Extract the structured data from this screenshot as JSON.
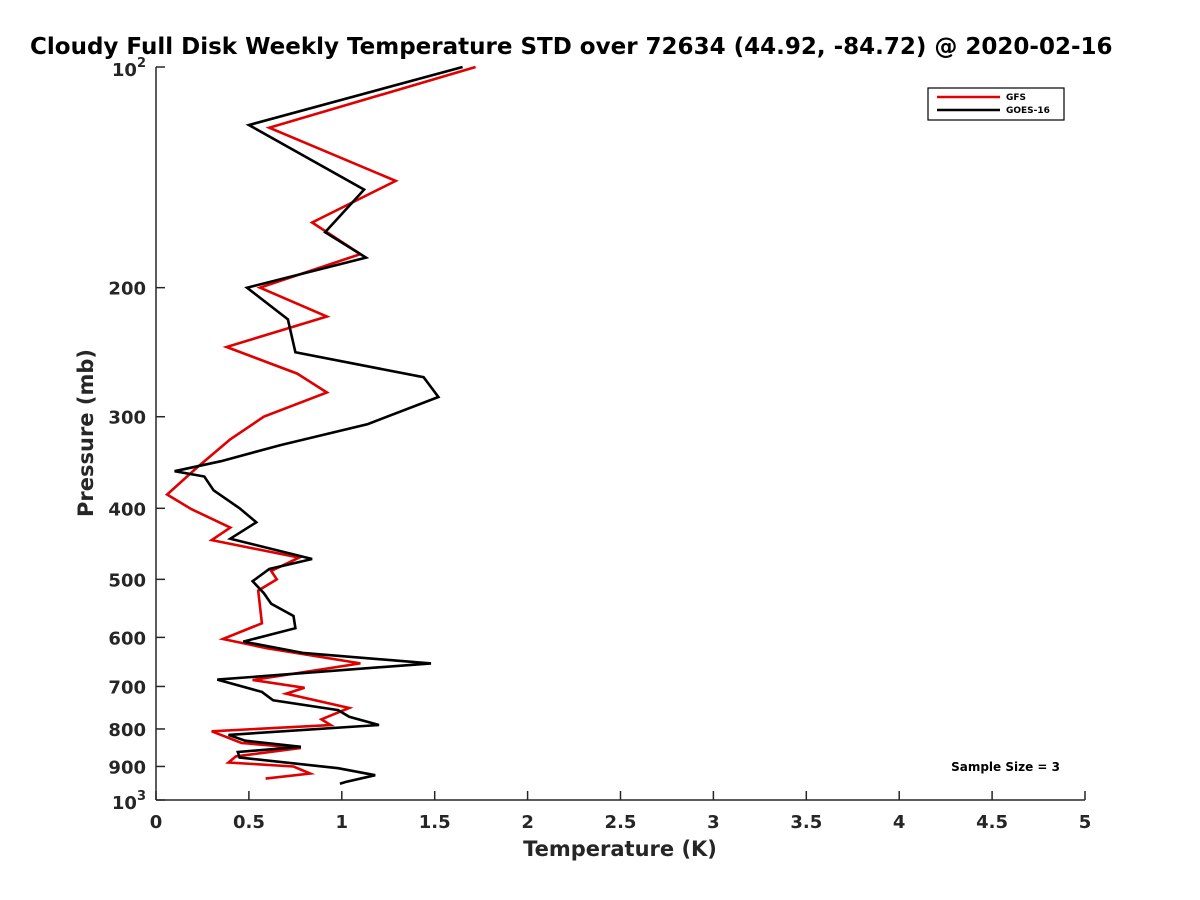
{
  "chart_data": {
    "type": "line",
    "title": "Cloudy Full Disk Weekly Temperature STD over 72634 (44.92, -84.72) @ 2020-02-16",
    "xlabel": "Temperature (K)",
    "ylabel": "Pressure (mb)",
    "xlim": [
      0,
      5
    ],
    "ylim": [
      100,
      1000
    ],
    "yscale": "log",
    "y_reversed": true,
    "grid": false,
    "legend_position": "top-right",
    "x_ticks": [
      0,
      0.5,
      1,
      1.5,
      2,
      2.5,
      3,
      3.5,
      4,
      4.5,
      5
    ],
    "x_tick_labels": [
      "0",
      "0.5",
      "1",
      "1.5",
      "2",
      "2.5",
      "3",
      "3.5",
      "4",
      "4.5",
      "5"
    ],
    "y_ticks": [
      {
        "value": 100,
        "base": "10",
        "exp": "2",
        "label": ""
      },
      {
        "value": 200,
        "label": "200"
      },
      {
        "value": 300,
        "label": "300"
      },
      {
        "value": 400,
        "label": "400"
      },
      {
        "value": 500,
        "label": "500"
      },
      {
        "value": 600,
        "label": "600"
      },
      {
        "value": 700,
        "label": "700"
      },
      {
        "value": 800,
        "label": "800"
      },
      {
        "value": 900,
        "label": "900"
      },
      {
        "value": 1000,
        "base": "10",
        "exp": "3",
        "label": ""
      }
    ],
    "annotation": "Sample Size = 3",
    "series": [
      {
        "name": "GFS",
        "color": "#e00000",
        "points": [
          [
            1.72,
            100
          ],
          [
            0.61,
            121
          ],
          [
            1.29,
            143
          ],
          [
            0.84,
            163
          ],
          [
            1.1,
            180
          ],
          [
            0.56,
            200
          ],
          [
            0.92,
            219
          ],
          [
            0.38,
            241
          ],
          [
            0.76,
            262
          ],
          [
            0.92,
            278
          ],
          [
            0.58,
            300
          ],
          [
            0.4,
            322
          ],
          [
            0.22,
            352
          ],
          [
            0.06,
            383
          ],
          [
            0.19,
            401
          ],
          [
            0.4,
            425
          ],
          [
            0.3,
            442
          ],
          [
            0.77,
            467
          ],
          [
            0.62,
            487
          ],
          [
            0.65,
            500
          ],
          [
            0.55,
            518
          ],
          [
            0.57,
            574
          ],
          [
            0.36,
            603
          ],
          [
            0.6,
            621
          ],
          [
            1.1,
            651
          ],
          [
            0.52,
            686
          ],
          [
            0.8,
            703
          ],
          [
            0.7,
            716
          ],
          [
            1.04,
            749
          ],
          [
            0.89,
            776
          ],
          [
            0.94,
            790
          ],
          [
            0.3,
            806
          ],
          [
            0.46,
            836
          ],
          [
            0.78,
            849
          ],
          [
            0.43,
            872
          ],
          [
            0.39,
            889
          ],
          [
            0.74,
            900
          ],
          [
            0.83,
            920
          ],
          [
            0.59,
            935
          ]
        ]
      },
      {
        "name": "GOES-16",
        "color": "#000000",
        "points": [
          [
            1.65,
            100
          ],
          [
            0.5,
            120
          ],
          [
            1.12,
            147
          ],
          [
            0.91,
            168
          ],
          [
            1.13,
            182
          ],
          [
            0.49,
            200
          ],
          [
            0.71,
            221
          ],
          [
            0.75,
            245
          ],
          [
            1.44,
            265
          ],
          [
            1.52,
            282
          ],
          [
            1.14,
            307
          ],
          [
            0.67,
            328
          ],
          [
            0.35,
            345
          ],
          [
            0.1,
            356
          ],
          [
            0.26,
            362
          ],
          [
            0.31,
            378
          ],
          [
            0.45,
            400
          ],
          [
            0.54,
            418
          ],
          [
            0.4,
            440
          ],
          [
            0.84,
            469
          ],
          [
            0.61,
            484
          ],
          [
            0.52,
            503
          ],
          [
            0.58,
            522
          ],
          [
            0.62,
            540
          ],
          [
            0.74,
            561
          ],
          [
            0.75,
            583
          ],
          [
            0.47,
            608
          ],
          [
            0.79,
            630
          ],
          [
            1.48,
            651
          ],
          [
            0.33,
            685
          ],
          [
            0.57,
            712
          ],
          [
            0.63,
            731
          ],
          [
            0.98,
            754
          ],
          [
            1.04,
            770
          ],
          [
            1.2,
            790
          ],
          [
            0.39,
            815
          ],
          [
            0.48,
            830
          ],
          [
            0.78,
            846
          ],
          [
            0.44,
            860
          ],
          [
            0.45,
            875
          ],
          [
            0.98,
            905
          ],
          [
            1.18,
            925
          ],
          [
            1.02,
            945
          ],
          [
            0.99,
            950
          ]
        ]
      }
    ]
  }
}
